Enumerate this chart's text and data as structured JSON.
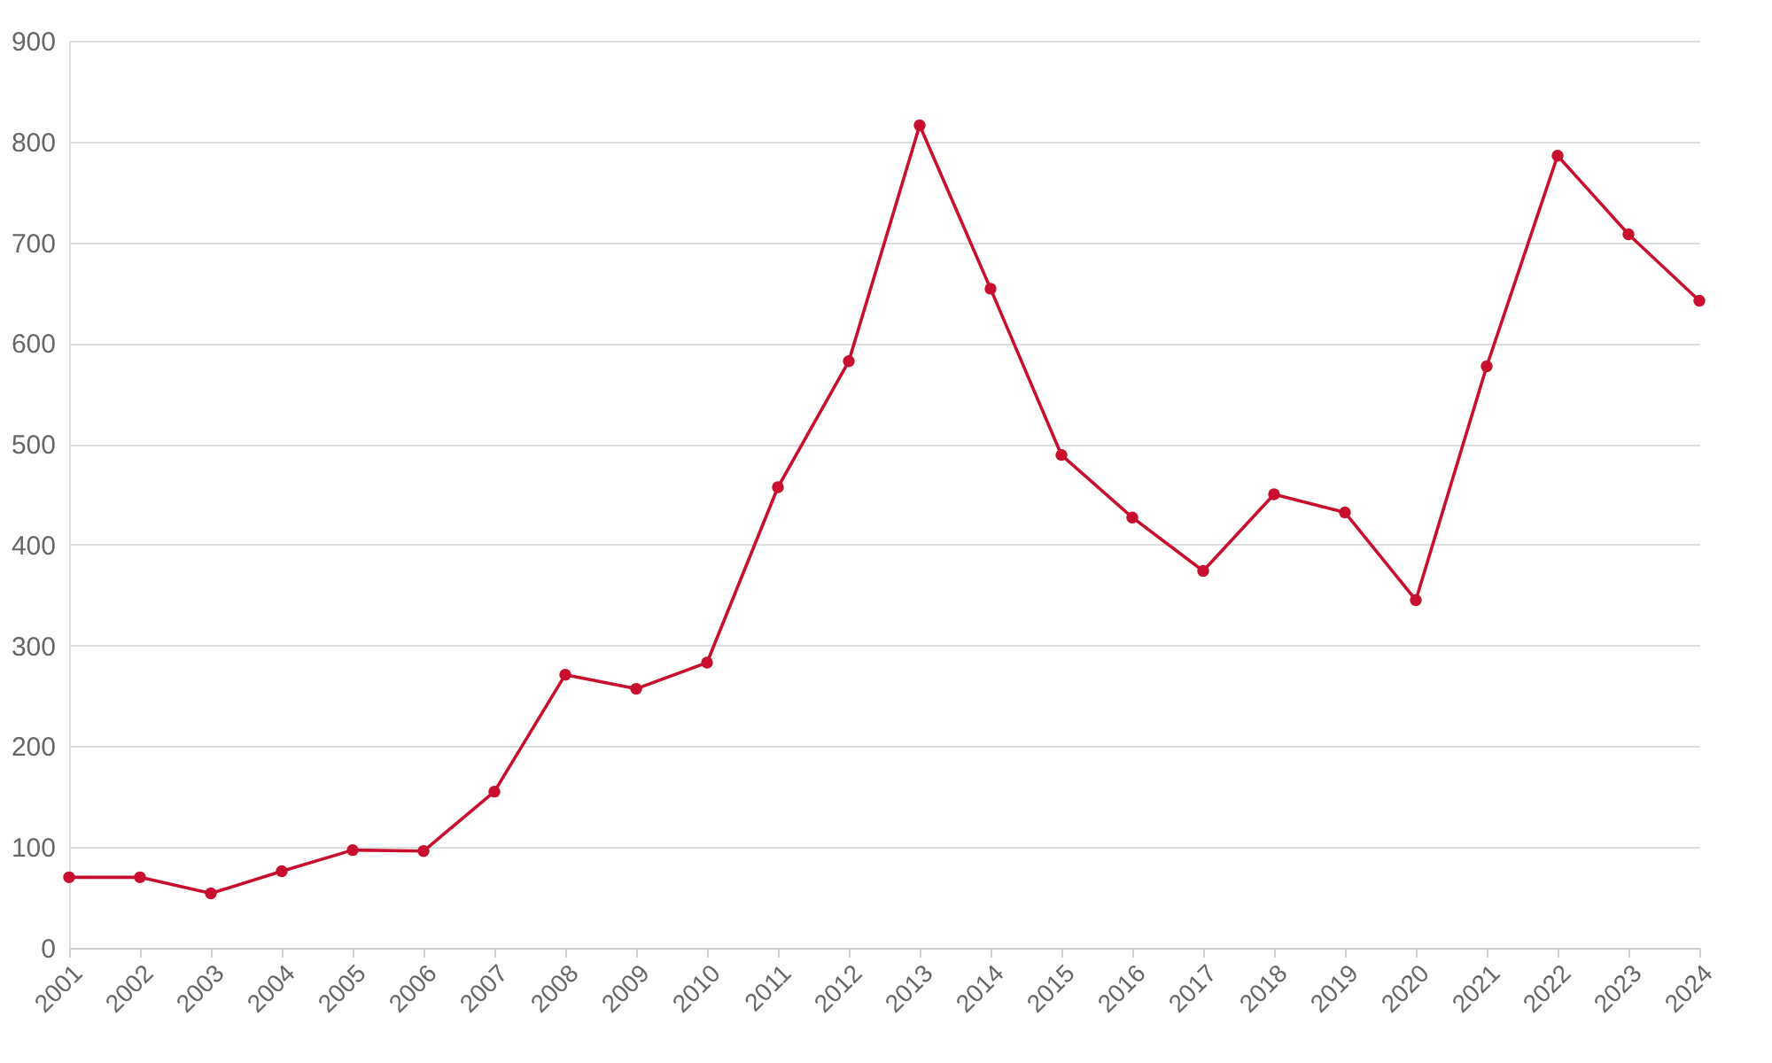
{
  "chart_data": {
    "type": "line",
    "categories": [
      "2001",
      "2002",
      "2003",
      "2004",
      "2005",
      "2006",
      "2007",
      "2008",
      "2009",
      "2010",
      "2011",
      "2012",
      "2013",
      "2014",
      "2015",
      "2016",
      "2017",
      "2018",
      "2019",
      "2020",
      "2021",
      "2022",
      "2023",
      "2024"
    ],
    "series": [
      {
        "color": "#c8102e",
        "values": [
          70,
          70,
          54,
          76,
          97,
          96,
          155,
          271,
          257,
          283,
          457,
          582,
          816,
          654,
          489,
          427,
          374,
          450,
          432,
          345,
          577,
          786,
          708,
          642
        ]
      }
    ],
    "ylim": [
      0,
      900
    ],
    "yticks": [
      0,
      100,
      200,
      300,
      400,
      500,
      600,
      700,
      800,
      900
    ],
    "grid": "y",
    "marker": "circle",
    "line_style": "solid"
  }
}
